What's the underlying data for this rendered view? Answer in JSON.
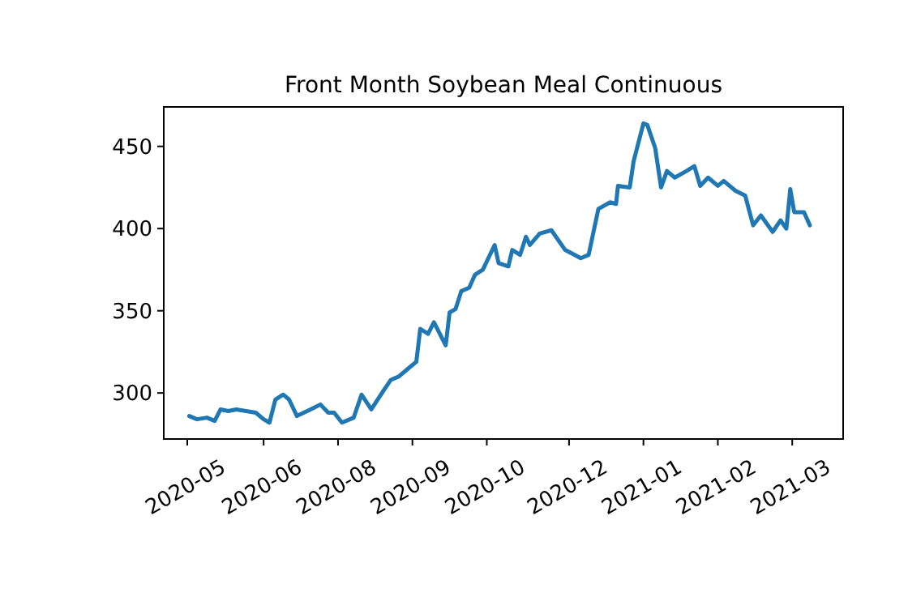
{
  "chart_data": {
    "type": "line",
    "title": "Front Month Soybean Meal Continuous",
    "x": [
      "2020-05-21",
      "2020-05-25",
      "2020-05-30",
      "2020-06-03",
      "2020-06-06",
      "2020-06-10",
      "2020-06-14",
      "2020-06-24",
      "2020-06-28",
      "2020-07-01",
      "2020-07-04",
      "2020-07-08",
      "2020-07-11",
      "2020-07-15",
      "2020-07-22",
      "2020-07-27",
      "2020-07-31",
      "2020-08-03",
      "2020-08-07",
      "2020-08-13",
      "2020-08-17",
      "2020-08-22",
      "2020-08-28",
      "2020-09-01",
      "2020-09-05",
      "2020-09-09",
      "2020-09-14",
      "2020-09-16",
      "2020-09-20",
      "2020-09-23",
      "2020-09-26",
      "2020-09-29",
      "2020-10-01",
      "2020-10-04",
      "2020-10-07",
      "2020-10-11",
      "2020-10-14",
      "2020-10-18",
      "2020-10-24",
      "2020-10-26",
      "2020-10-31",
      "2020-11-02",
      "2020-11-06",
      "2020-11-09",
      "2020-11-11",
      "2020-11-16",
      "2020-11-22",
      "2020-11-29",
      "2020-12-07",
      "2020-12-11",
      "2020-12-16",
      "2020-12-22",
      "2020-12-25",
      "2020-12-26",
      "2021-01-01",
      "2021-01-03",
      "2021-01-08",
      "2021-01-10",
      "2021-01-14",
      "2021-01-17",
      "2021-01-20",
      "2021-01-24",
      "2021-01-30",
      "2021-02-03",
      "2021-02-06",
      "2021-02-10",
      "2021-02-15",
      "2021-02-18",
      "2021-02-24",
      "2021-03-01",
      "2021-03-05",
      "2021-03-09",
      "2021-03-15",
      "2021-03-19",
      "2021-03-22",
      "2021-03-24",
      "2021-03-26",
      "2021-03-31",
      "2021-04-03"
    ],
    "series": [
      {
        "color": "#1f77b4",
        "values": [
          286,
          284,
          285,
          283,
          290,
          289,
          290,
          288,
          284,
          282,
          296,
          299,
          296,
          286,
          290,
          293,
          288,
          288,
          282,
          285,
          299,
          290,
          301,
          308,
          310,
          314,
          319,
          339,
          336,
          343,
          336,
          329,
          349,
          351,
          362,
          364,
          372,
          375,
          390,
          379,
          377,
          387,
          384,
          395,
          390,
          397,
          399,
          387,
          382,
          384,
          412,
          416,
          415,
          426,
          425,
          441,
          464,
          463,
          449,
          425,
          435,
          431,
          435,
          438,
          426,
          431,
          426,
          429,
          423,
          420,
          402,
          408,
          398,
          405,
          400,
          424,
          410,
          410,
          402
        ]
      }
    ],
    "xlim": [
      "2020-05-08",
      "2021-04-20"
    ],
    "xticks": [
      {
        "value": "2020-05-20",
        "label": "2020-05"
      },
      {
        "value": "2020-06-28",
        "label": "2020-06"
      },
      {
        "value": "2020-08-05",
        "label": "2020-08"
      },
      {
        "value": "2020-09-12",
        "label": "2020-09"
      },
      {
        "value": "2020-10-20",
        "label": "2020-10"
      },
      {
        "value": "2020-12-01",
        "label": "2020-12"
      },
      {
        "value": "2021-01-08",
        "label": "2021-01"
      },
      {
        "value": "2021-02-15",
        "label": "2021-02"
      },
      {
        "value": "2021-03-25",
        "label": "2021-03"
      }
    ],
    "ylim": [
      272,
      474
    ],
    "yticks": [
      300,
      350,
      400,
      450
    ],
    "grid": false
  }
}
